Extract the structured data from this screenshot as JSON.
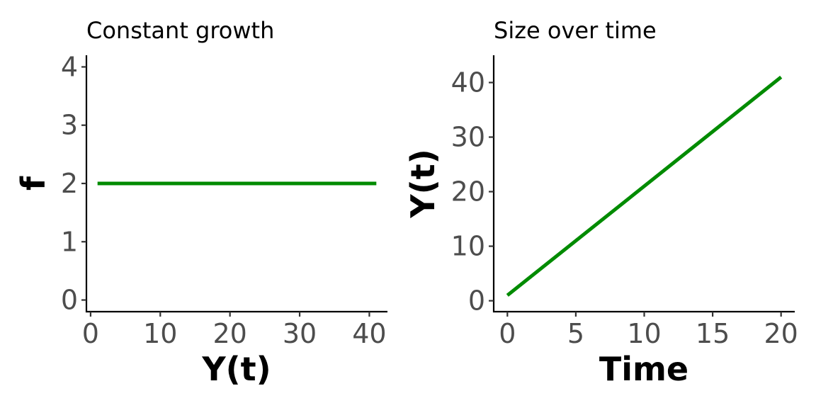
{
  "chart_data": [
    {
      "type": "line",
      "title": "Constant growth",
      "xlabel": "Y(t)",
      "ylabel": "f",
      "xlim": [
        -0.6,
        42.6
      ],
      "ylim": [
        -0.2,
        4.2
      ],
      "x_ticks": [
        0,
        10,
        20,
        30,
        40
      ],
      "y_ticks": [
        0,
        1,
        2,
        3,
        4
      ],
      "grid": false,
      "series": [
        {
          "x": [
            1,
            41
          ],
          "y": [
            2,
            2
          ],
          "color": "#008b00"
        }
      ]
    },
    {
      "type": "line",
      "title": "Size over time",
      "xlabel": "Time",
      "ylabel": "Y(t)",
      "xlim": [
        -1,
        21
      ],
      "ylim": [
        -2,
        45
      ],
      "x_ticks": [
        0,
        5,
        10,
        15,
        20
      ],
      "y_ticks": [
        0,
        10,
        20,
        30,
        40
      ],
      "grid": false,
      "series": [
        {
          "x": [
            0,
            20
          ],
          "y": [
            1,
            41
          ],
          "color": "#008b00"
        }
      ]
    }
  ]
}
